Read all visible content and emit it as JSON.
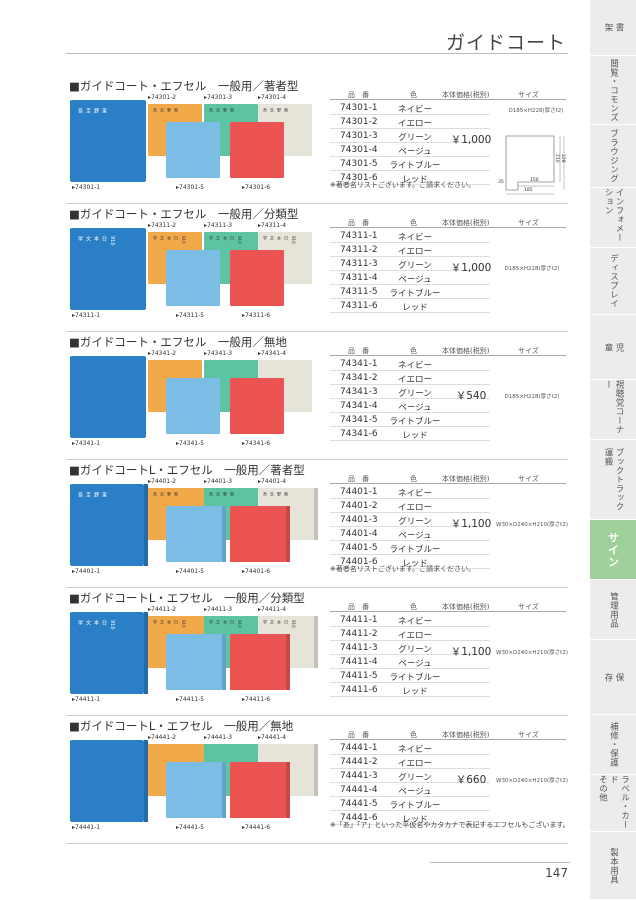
{
  "page": {
    "title": "ガイドコート",
    "page_number": "147"
  },
  "sidebar": [
    {
      "label": "書\n架",
      "active": false
    },
    {
      "label": "閲覧・コモンズ",
      "active": false
    },
    {
      "label": "ブラウジング",
      "active": false
    },
    {
      "label": "インフォメーション",
      "active": false
    },
    {
      "label": "ディスプレイ",
      "active": false
    },
    {
      "label": "児\n童",
      "active": false
    },
    {
      "label": "視聴覚コーナー",
      "active": false
    },
    {
      "label": "ブックトラック\n運搬",
      "active": false
    },
    {
      "label": "サイン",
      "active": true
    },
    {
      "label": "管理用品",
      "active": false
    },
    {
      "label": "保\n存",
      "active": false
    },
    {
      "label": "補修・保護",
      "active": false
    },
    {
      "label": "ラベル・カード\nその他",
      "active": false
    },
    {
      "label": "製本用具",
      "active": false
    }
  ],
  "table_headers": {
    "no": "品　番",
    "color": "色",
    "price": "本体価格(税別)",
    "size": "サイズ"
  },
  "colors": [
    "ネイビー",
    "イエロー",
    "グリーン",
    "ベージュ",
    "ライトブルー",
    "レッド"
  ],
  "swatches": {
    "navy": "#2a7fc6",
    "yellow": "#f2a94a",
    "green": "#5cc3a3",
    "beige": "#e6e4d8",
    "lightblue": "#7cbde6",
    "red": "#ec5454"
  },
  "sections": [
    {
      "title": "■ガイドコート・エフセル　一般用／著者型",
      "numbers": [
        "74301-1",
        "74301-2",
        "74301-3",
        "74301-4",
        "74301-5",
        "74301-6"
      ],
      "price": "￥1,000",
      "size": "D185×H228(厚さt2)",
      "note": "※著者名リストございます。ご請求ください。",
      "board_text": "東\n野\n圭\n吾",
      "diagram": {
        "d150": "150",
        "d185": "185",
        "d35": "35",
        "h210": "210",
        "h228": "228"
      }
    },
    {
      "title": "■ガイドコート・エフセル　一般用／分類型",
      "numbers": [
        "74311-1",
        "74311-2",
        "74311-3",
        "74311-4",
        "74311-5",
        "74311-6"
      ],
      "price": "￥1,000",
      "size": "D185×H228(厚さt2)",
      "note": "",
      "board_text": "910\n日\n本\n文\n学"
    },
    {
      "title": "■ガイドコート・エフセル　一般用／無地",
      "numbers": [
        "74341-1",
        "74341-2",
        "74341-3",
        "74341-4",
        "74341-5",
        "74341-6"
      ],
      "price": "￥540",
      "size": "D185×H228(厚さt2)",
      "note": "",
      "board_text": ""
    },
    {
      "title": "■ガイドコートL・エフセル　一般用／著者型",
      "numbers": [
        "74401-1",
        "74401-2",
        "74401-3",
        "74401-4",
        "74401-5",
        "74401-6"
      ],
      "price": "￥1,100",
      "size": "W30×D240×H210(厚さt2)",
      "note": "※著者名リストございます。ご請求ください。",
      "board_text": "東\n野\n圭\n吾"
    },
    {
      "title": "■ガイドコートL・エフセル　一般用／分類型",
      "numbers": [
        "74411-1",
        "74411-2",
        "74411-3",
        "74411-4",
        "74411-5",
        "74411-6"
      ],
      "price": "￥1,100",
      "size": "W30×D240×H210(厚さt2)",
      "note": "",
      "board_text": "910\n日\n本\n文\n学"
    },
    {
      "title": "■ガイドコートL・エフセル　一般用／無地",
      "numbers": [
        "74441-1",
        "74441-2",
        "74441-3",
        "74441-4",
        "74441-5",
        "74441-6"
      ],
      "price": "￥660",
      "size": "W30×D240×H210(厚さt2)",
      "note": "※「あ」「ア」といった平仮名やカタカナで表記するエフセルもございます。",
      "board_text": ""
    }
  ]
}
